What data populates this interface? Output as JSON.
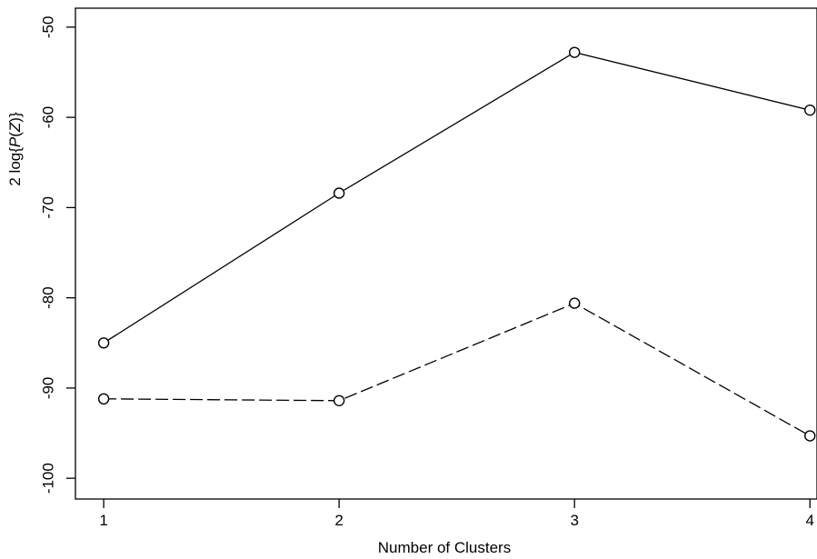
{
  "chart_data": {
    "type": "line",
    "xlabel": "Number of Clusters",
    "ylabel": {
      "prefix": "2 log{",
      "italic_p": "P",
      "paren_open": "(",
      "italic_z": "Z",
      "suffix": ")}"
    },
    "x": [
      1,
      2,
      3,
      4
    ],
    "xlim": [
      0.88,
      4.03
    ],
    "ylim": [
      -102.3,
      -47.9
    ],
    "xticks": [
      1,
      2,
      3,
      4
    ],
    "xtick_labels": [
      "1",
      "2",
      "3",
      "4"
    ],
    "yticks": [
      -50,
      -60,
      -70,
      -80,
      -90,
      -100
    ],
    "ytick_labels": [
      "-50",
      "-60",
      "-70",
      "-80",
      "-90",
      "-100"
    ],
    "grid": false,
    "legend": "none",
    "series": [
      {
        "values": [
          -85.0,
          -68.4,
          -52.8,
          -59.2
        ],
        "line_style": "solid",
        "marker": "open-circle",
        "color": "#000000"
      },
      {
        "values": [
          -91.2,
          -91.4,
          -80.6,
          -95.3
        ],
        "line_style": "dashed",
        "marker": "open-circle",
        "color": "#000000"
      }
    ]
  }
}
